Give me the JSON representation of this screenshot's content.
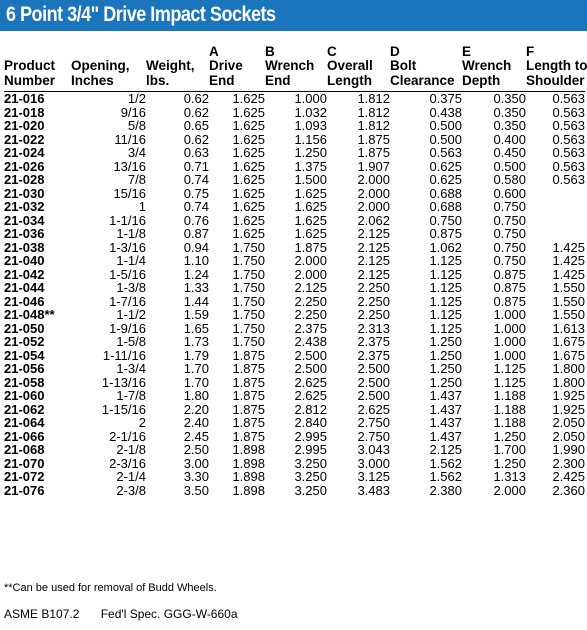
{
  "title": "6 Point 3/4\" Drive Impact Sockets",
  "columns": [
    [
      "Product",
      "Number"
    ],
    [
      "Opening,",
      "Inches"
    ],
    [
      "Weight,",
      "lbs."
    ],
    [
      "A",
      "Drive",
      "End"
    ],
    [
      "B",
      "Wrench",
      "End"
    ],
    [
      "C",
      "Overall",
      "Length"
    ],
    [
      "D",
      "Bolt",
      "Clearance"
    ],
    [
      "E",
      "Wrench",
      "Depth"
    ],
    [
      "F",
      "Length to",
      "Shoulder"
    ]
  ],
  "rows": [
    [
      "21-016",
      "1/2",
      "0.62",
      "1.625",
      "1.000",
      "1.812",
      "0.375",
      "0.350",
      "0.563"
    ],
    [
      "21-018",
      "9/16",
      "0.62",
      "1.625",
      "1.032",
      "1.812",
      "0.438",
      "0.350",
      "0.563"
    ],
    [
      "21-020",
      "5/8",
      "0.65",
      "1.625",
      "1.093",
      "1.812",
      "0.500",
      "0.350",
      "0.563"
    ],
    [
      "21-022",
      "11/16",
      "0.62",
      "1.625",
      "1.156",
      "1.875",
      "0.500",
      "0.400",
      "0.563"
    ],
    [
      "21-024",
      "3/4",
      "0.63",
      "1.625",
      "1.250",
      "1.875",
      "0.563",
      "0.450",
      "0.563"
    ],
    [
      "21-026",
      "13/16",
      "0.71",
      "1.625",
      "1.375",
      "1.907",
      "0.625",
      "0.500",
      "0.563"
    ],
    [
      "21-028",
      "7/8",
      "0.74",
      "1.625",
      "1.500",
      "2.000",
      "0.625",
      "0.580",
      "0.563"
    ],
    [
      "21-030",
      "15/16",
      "0.75",
      "1.625",
      "1.625",
      "2.000",
      "0.688",
      "0.600",
      ""
    ],
    [
      "21-032",
      "1",
      "0.74",
      "1.625",
      "1.625",
      "2.000",
      "0.688",
      "0.750",
      ""
    ],
    [
      "21-034",
      "1-1/16",
      "0.76",
      "1.625",
      "1.625",
      "2.062",
      "0.750",
      "0.750",
      ""
    ],
    [
      "21-036",
      "1-1/8",
      "0.87",
      "1.625",
      "1.625",
      "2.125",
      "0.875",
      "0.750",
      ""
    ],
    [
      "21-038",
      "1-3/16",
      "0.94",
      "1.750",
      "1.875",
      "2.125",
      "1.062",
      "0.750",
      "1.425"
    ],
    [
      "21-040",
      "1-1/4",
      "1.10",
      "1.750",
      "2.000",
      "2.125",
      "1.125",
      "0.750",
      "1.425"
    ],
    [
      "21-042",
      "1-5/16",
      "1.24",
      "1.750",
      "2.000",
      "2.125",
      "1.125",
      "0.875",
      "1.425"
    ],
    [
      "21-044",
      "1-3/8",
      "1.33",
      "1.750",
      "2.125",
      "2.250",
      "1.125",
      "0.875",
      "1.550"
    ],
    [
      "21-046",
      "1-7/16",
      "1.44",
      "1.750",
      "2.250",
      "2.250",
      "1.125",
      "0.875",
      "1.550"
    ],
    [
      "21-048**",
      "1-1/2",
      "1.59",
      "1.750",
      "2.250",
      "2.250",
      "1.125",
      "1.000",
      "1.550"
    ],
    [
      "21-050",
      "1-9/16",
      "1.65",
      "1.750",
      "2.375",
      "2.313",
      "1.125",
      "1.000",
      "1.613"
    ],
    [
      "21-052",
      "1-5/8",
      "1.73",
      "1.750",
      "2.438",
      "2.375",
      "1.250",
      "1.000",
      "1.675"
    ],
    [
      "21-054",
      "1-11/16",
      "1.79",
      "1.875",
      "2.500",
      "2.375",
      "1.250",
      "1.000",
      "1.675"
    ],
    [
      "21-056",
      "1-3/4",
      "1.70",
      "1.875",
      "2.500",
      "2.500",
      "1.250",
      "1.125",
      "1.800"
    ],
    [
      "21-058",
      "1-13/16",
      "1.70",
      "1.875",
      "2.625",
      "2.500",
      "1.250",
      "1.125",
      "1.800"
    ],
    [
      "21-060",
      "1-7/8",
      "1.80",
      "1.875",
      "2.625",
      "2.500",
      "1.437",
      "1.188",
      "1.925"
    ],
    [
      "21-062",
      "1-15/16",
      "2.20",
      "1.875",
      "2.812",
      "2.625",
      "1.437",
      "1.188",
      "1.925"
    ],
    [
      "21-064",
      "2",
      "2.40",
      "1.875",
      "2.840",
      "2.750",
      "1.437",
      "1.188",
      "2.050"
    ],
    [
      "21-066",
      "2-1/16",
      "2.45",
      "1.875",
      "2.995",
      "2.750",
      "1.437",
      "1.250",
      "2.050"
    ],
    [
      "21-068",
      "2-1/8",
      "2.50",
      "1.898",
      "2.995",
      "3.043",
      "2.125",
      "1.700",
      "1.990"
    ],
    [
      "21-070",
      "2-3/16",
      "3.00",
      "1.898",
      "3.250",
      "3.000",
      "1.562",
      "1.250",
      "2.300"
    ],
    [
      "21-072",
      "2-1/4",
      "3.30",
      "1.898",
      "3.250",
      "3.125",
      "1.562",
      "1.313",
      "2.425"
    ],
    [
      "21-076",
      "2-3/8",
      "3.50",
      "1.898",
      "3.250",
      "3.483",
      "2.380",
      "2.000",
      "2.360"
    ]
  ],
  "footnote": "**Can be used for removal of Budd Wheels.",
  "standards": [
    "ASME B107.2",
    "Fed'l Spec. GGG-W-660a"
  ],
  "colors": {
    "title_bar": "#1b75bc",
    "title_text": "#ffffff"
  }
}
